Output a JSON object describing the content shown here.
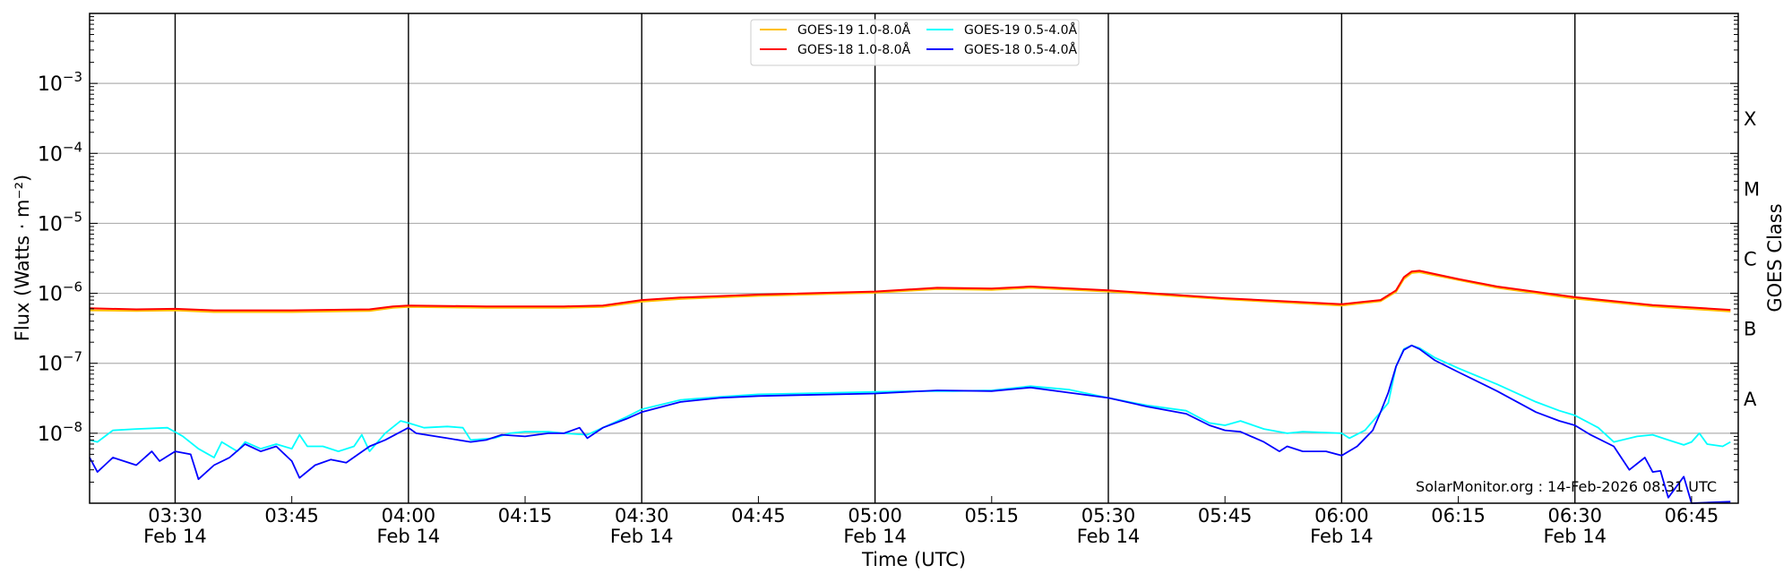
{
  "chart_data": {
    "type": "line",
    "title": "",
    "xlabel": "Time (UTC)",
    "ylabel": "Flux (Watts · m⁻²)",
    "y2label": "GOES Class",
    "yscale": "log",
    "ylim": [
      1e-09,
      0.01
    ],
    "xlim": [
      "03:19",
      "06:51"
    ],
    "date_label": "Feb 14",
    "x_major_ticks": [
      "03:30",
      "04:00",
      "04:30",
      "05:00",
      "05:30",
      "06:00",
      "06:30"
    ],
    "x_minor_ticks": [
      "03:45",
      "04:15",
      "04:45",
      "05:15",
      "05:45",
      "06:15",
      "06:45"
    ],
    "y_ticks": [
      {
        "value": 1e-08,
        "base": "10",
        "exp": "−8"
      },
      {
        "value": 1e-07,
        "base": "10",
        "exp": "−7"
      },
      {
        "value": 1e-06,
        "base": "10",
        "exp": "−6"
      },
      {
        "value": 1e-05,
        "base": "10",
        "exp": "−5"
      },
      {
        "value": 0.0001,
        "base": "10",
        "exp": "−4"
      },
      {
        "value": 0.001,
        "base": "10",
        "exp": "−3"
      }
    ],
    "goes_classes": [
      {
        "label": "A",
        "value": 3.16e-08
      },
      {
        "label": "B",
        "value": 3.16e-07
      },
      {
        "label": "C",
        "value": 3.16e-06
      },
      {
        "label": "M",
        "value": 3.16e-05
      },
      {
        "label": "X",
        "value": 0.000316
      }
    ],
    "grid": true,
    "legend_position": "top-center",
    "annotation": "SolarMonitor.org : 14-Feb-2026 08:31 UTC",
    "series": [
      {
        "name": "GOES-19 1.0-8.0Å",
        "color": "#ffc000",
        "points": [
          [
            "03:19",
            5.7e-07
          ],
          [
            "03:25",
            5.6e-07
          ],
          [
            "03:30",
            5.7e-07
          ],
          [
            "03:35",
            5.4e-07
          ],
          [
            "03:45",
            5.4e-07
          ],
          [
            "03:55",
            5.6e-07
          ],
          [
            "03:58",
            6.2e-07
          ],
          [
            "04:00",
            6.4e-07
          ],
          [
            "04:10",
            6.2e-07
          ],
          [
            "04:20",
            6.2e-07
          ],
          [
            "04:25",
            6.4e-07
          ],
          [
            "04:30",
            7.6e-07
          ],
          [
            "04:35",
            8.3e-07
          ],
          [
            "04:45",
            9.2e-07
          ],
          [
            "05:00",
            1.02e-06
          ],
          [
            "05:08",
            1.15e-06
          ],
          [
            "05:15",
            1.12e-06
          ],
          [
            "05:20",
            1.2e-06
          ],
          [
            "05:30",
            1.06e-06
          ],
          [
            "05:45",
            8.2e-07
          ],
          [
            "06:00",
            6.7e-07
          ],
          [
            "06:05",
            7.7e-07
          ],
          [
            "06:07",
            1.05e-06
          ],
          [
            "06:08",
            1.6e-06
          ],
          [
            "06:09",
            1.95e-06
          ],
          [
            "06:10",
            2e-06
          ],
          [
            "06:15",
            1.55e-06
          ],
          [
            "06:20",
            1.2e-06
          ],
          [
            "06:30",
            8.4e-07
          ],
          [
            "06:40",
            6.5e-07
          ],
          [
            "06:50",
            5.5e-07
          ]
        ]
      },
      {
        "name": "GOES-18 1.0-8.0Å",
        "color": "#ff0000",
        "points": [
          [
            "03:19",
            6.1e-07
          ],
          [
            "03:25",
            5.9e-07
          ],
          [
            "03:30",
            6e-07
          ],
          [
            "03:35",
            5.7e-07
          ],
          [
            "03:45",
            5.7e-07
          ],
          [
            "03:55",
            5.9e-07
          ],
          [
            "03:58",
            6.5e-07
          ],
          [
            "04:00",
            6.7e-07
          ],
          [
            "04:10",
            6.5e-07
          ],
          [
            "04:20",
            6.5e-07
          ],
          [
            "04:25",
            6.7e-07
          ],
          [
            "04:30",
            8e-07
          ],
          [
            "04:35",
            8.7e-07
          ],
          [
            "04:45",
            9.6e-07
          ],
          [
            "05:00",
            1.06e-06
          ],
          [
            "05:08",
            1.2e-06
          ],
          [
            "05:15",
            1.17e-06
          ],
          [
            "05:20",
            1.25e-06
          ],
          [
            "05:30",
            1.1e-06
          ],
          [
            "05:45",
            8.5e-07
          ],
          [
            "06:00",
            7e-07
          ],
          [
            "06:05",
            8e-07
          ],
          [
            "06:07",
            1.1e-06
          ],
          [
            "06:08",
            1.7e-06
          ],
          [
            "06:09",
            2.05e-06
          ],
          [
            "06:10",
            2.1e-06
          ],
          [
            "06:15",
            1.6e-06
          ],
          [
            "06:20",
            1.25e-06
          ],
          [
            "06:30",
            8.8e-07
          ],
          [
            "06:40",
            6.8e-07
          ],
          [
            "06:50",
            5.8e-07
          ]
        ]
      },
      {
        "name": "GOES-19 0.5-4.0Å",
        "color": "#00ffff",
        "points": [
          [
            "03:19",
            8e-09
          ],
          [
            "03:20",
            7.5e-09
          ],
          [
            "03:22",
            1.1e-08
          ],
          [
            "03:25",
            1.15e-08
          ],
          [
            "03:29",
            1.2e-08
          ],
          [
            "03:31",
            9e-09
          ],
          [
            "03:33",
            6e-09
          ],
          [
            "03:35",
            4.5e-09
          ],
          [
            "03:36",
            7.5e-09
          ],
          [
            "03:38",
            5.5e-09
          ],
          [
            "03:39",
            7.5e-09
          ],
          [
            "03:41",
            6e-09
          ],
          [
            "03:43",
            7e-09
          ],
          [
            "03:45",
            6e-09
          ],
          [
            "03:46",
            9.5e-09
          ],
          [
            "03:47",
            6.5e-09
          ],
          [
            "03:49",
            6.5e-09
          ],
          [
            "03:51",
            5.5e-09
          ],
          [
            "03:53",
            6.5e-09
          ],
          [
            "03:54",
            9.5e-09
          ],
          [
            "03:55",
            5.5e-09
          ],
          [
            "03:57",
            1e-08
          ],
          [
            "03:59",
            1.5e-08
          ],
          [
            "04:00",
            1.4e-08
          ],
          [
            "04:02",
            1.2e-08
          ],
          [
            "04:05",
            1.25e-08
          ],
          [
            "04:07",
            1.2e-08
          ],
          [
            "04:08",
            8e-09
          ],
          [
            "04:11",
            8.5e-09
          ],
          [
            "04:13",
            1e-08
          ],
          [
            "04:15",
            1.05e-08
          ],
          [
            "04:18",
            1.05e-08
          ],
          [
            "04:20",
            1e-08
          ],
          [
            "04:23",
            9.5e-09
          ],
          [
            "04:25",
            1.2e-08
          ],
          [
            "04:28",
            1.7e-08
          ],
          [
            "04:30",
            2.2e-08
          ],
          [
            "04:35",
            3e-08
          ],
          [
            "04:40",
            3.3e-08
          ],
          [
            "04:45",
            3.6e-08
          ],
          [
            "04:50",
            3.7e-08
          ],
          [
            "05:00",
            3.9e-08
          ],
          [
            "05:05",
            4e-08
          ],
          [
            "05:10",
            4e-08
          ],
          [
            "05:15",
            4.1e-08
          ],
          [
            "05:20",
            4.7e-08
          ],
          [
            "05:25",
            4.2e-08
          ],
          [
            "05:30",
            3.2e-08
          ],
          [
            "05:35",
            2.5e-08
          ],
          [
            "05:40",
            2.1e-08
          ],
          [
            "05:43",
            1.4e-08
          ],
          [
            "05:45",
            1.3e-08
          ],
          [
            "05:47",
            1.5e-08
          ],
          [
            "05:50",
            1.15e-08
          ],
          [
            "05:53",
            1e-08
          ],
          [
            "05:55",
            1.05e-08
          ],
          [
            "06:00",
            1e-08
          ],
          [
            "06:01",
            8.5e-09
          ],
          [
            "06:03",
            1.1e-08
          ],
          [
            "06:05",
            2e-08
          ],
          [
            "06:06",
            2.7e-08
          ],
          [
            "06:07",
            9e-08
          ],
          [
            "06:08",
            1.6e-07
          ],
          [
            "06:09",
            1.8e-07
          ],
          [
            "06:10",
            1.65e-07
          ],
          [
            "06:12",
            1.2e-07
          ],
          [
            "06:15",
            8.5e-08
          ],
          [
            "06:20",
            5e-08
          ],
          [
            "06:25",
            2.8e-08
          ],
          [
            "06:28",
            2.1e-08
          ],
          [
            "06:30",
            1.8e-08
          ],
          [
            "06:33",
            1.2e-08
          ],
          [
            "06:35",
            7.5e-09
          ],
          [
            "06:38",
            9e-09
          ],
          [
            "06:40",
            9.5e-09
          ],
          [
            "06:42",
            8e-09
          ],
          [
            "06:44",
            6.8e-09
          ],
          [
            "06:45",
            7.5e-09
          ],
          [
            "06:46",
            1e-08
          ],
          [
            "06:47",
            7e-09
          ],
          [
            "06:49",
            6.5e-09
          ],
          [
            "06:50",
            7.5e-09
          ]
        ]
      },
      {
        "name": "GOES-18 0.5-4.0Å",
        "color": "#0000ff",
        "points": [
          [
            "03:19",
            4.5e-09
          ],
          [
            "03:20",
            2.8e-09
          ],
          [
            "03:22",
            4.5e-09
          ],
          [
            "03:25",
            3.5e-09
          ],
          [
            "03:27",
            5.5e-09
          ],
          [
            "03:28",
            4e-09
          ],
          [
            "03:30",
            5.5e-09
          ],
          [
            "03:32",
            5e-09
          ],
          [
            "03:33",
            2.2e-09
          ],
          [
            "03:35",
            3.5e-09
          ],
          [
            "03:37",
            4.5e-09
          ],
          [
            "03:39",
            7e-09
          ],
          [
            "03:41",
            5.5e-09
          ],
          [
            "03:43",
            6.5e-09
          ],
          [
            "03:45",
            4e-09
          ],
          [
            "03:46",
            2.3e-09
          ],
          [
            "03:48",
            3.5e-09
          ],
          [
            "03:50",
            4.2e-09
          ],
          [
            "03:52",
            3.8e-09
          ],
          [
            "03:55",
            6.5e-09
          ],
          [
            "03:57",
            8e-09
          ],
          [
            "04:00",
            1.2e-08
          ],
          [
            "04:01",
            1e-08
          ],
          [
            "04:05",
            8.5e-09
          ],
          [
            "04:08",
            7.5e-09
          ],
          [
            "04:10",
            8e-09
          ],
          [
            "04:12",
            9.5e-09
          ],
          [
            "04:15",
            9e-09
          ],
          [
            "04:18",
            1e-08
          ],
          [
            "04:20",
            1e-08
          ],
          [
            "04:22",
            1.2e-08
          ],
          [
            "04:23",
            8.5e-09
          ],
          [
            "04:25",
            1.2e-08
          ],
          [
            "04:28",
            1.6e-08
          ],
          [
            "04:30",
            2e-08
          ],
          [
            "04:35",
            2.8e-08
          ],
          [
            "04:40",
            3.2e-08
          ],
          [
            "04:45",
            3.4e-08
          ],
          [
            "04:50",
            3.5e-08
          ],
          [
            "05:00",
            3.7e-08
          ],
          [
            "05:08",
            4.1e-08
          ],
          [
            "05:15",
            4e-08
          ],
          [
            "05:20",
            4.5e-08
          ],
          [
            "05:25",
            3.8e-08
          ],
          [
            "05:30",
            3.2e-08
          ],
          [
            "05:35",
            2.4e-08
          ],
          [
            "05:40",
            1.9e-08
          ],
          [
            "05:43",
            1.3e-08
          ],
          [
            "05:45",
            1.1e-08
          ],
          [
            "05:47",
            1.05e-08
          ],
          [
            "05:50",
            7.5e-09
          ],
          [
            "05:52",
            5.5e-09
          ],
          [
            "05:53",
            6.5e-09
          ],
          [
            "05:55",
            5.5e-09
          ],
          [
            "05:58",
            5.5e-09
          ],
          [
            "06:00",
            4.8e-09
          ],
          [
            "06:02",
            6.5e-09
          ],
          [
            "06:04",
            1.1e-08
          ],
          [
            "06:05",
            2e-08
          ],
          [
            "06:06",
            3.8e-08
          ],
          [
            "06:07",
            9e-08
          ],
          [
            "06:08",
            1.55e-07
          ],
          [
            "06:09",
            1.8e-07
          ],
          [
            "06:10",
            1.6e-07
          ],
          [
            "06:12",
            1.1e-07
          ],
          [
            "06:15",
            7.5e-08
          ],
          [
            "06:20",
            4e-08
          ],
          [
            "06:25",
            2e-08
          ],
          [
            "06:28",
            1.5e-08
          ],
          [
            "06:30",
            1.3e-08
          ],
          [
            "06:32",
            9.5e-09
          ],
          [
            "06:35",
            6.5e-09
          ],
          [
            "06:37",
            3e-09
          ],
          [
            "06:39",
            4.5e-09
          ],
          [
            "06:40",
            2.8e-09
          ],
          [
            "06:41",
            2.9e-09
          ],
          [
            "06:42",
            1.2e-09
          ],
          [
            "06:44",
            2.4e-09
          ],
          [
            "06:45",
            1e-09
          ],
          [
            "06:50",
            1.05e-09
          ]
        ]
      }
    ]
  }
}
